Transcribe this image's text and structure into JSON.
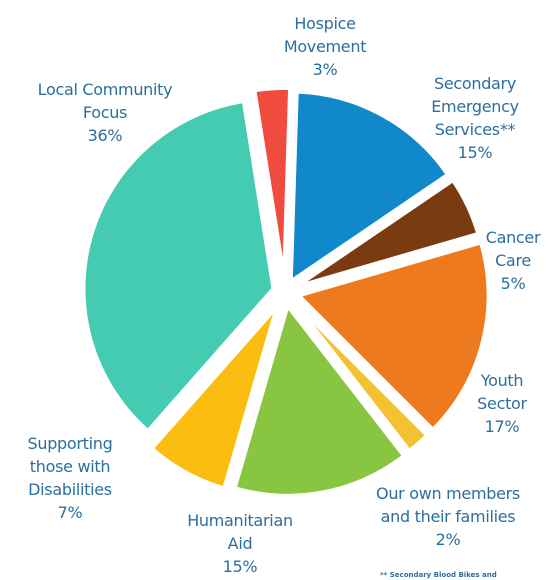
{
  "chart_data": {
    "type": "pie",
    "title": "",
    "slices": [
      {
        "label": [
          "Hospice",
          "Movement"
        ],
        "value": 3,
        "pct": "3%",
        "color": "#ef4b3f"
      },
      {
        "label": [
          "Secondary",
          "Emergency",
          "Services**"
        ],
        "value": 15,
        "pct": "15%",
        "color": "#1188c9"
      },
      {
        "label": [
          "Cancer",
          "Care"
        ],
        "value": 5,
        "pct": "5%",
        "color": "#7a3b10"
      },
      {
        "label": [
          "Youth",
          "Sector"
        ],
        "value": 17,
        "pct": "17%",
        "color": "#ee7a1f"
      },
      {
        "label": [
          "Our own members",
          "and their families"
        ],
        "value": 2,
        "pct": "2%",
        "color": "#f2c230"
      },
      {
        "label": [
          "Humanitarian",
          "Aid"
        ],
        "value": 15,
        "pct": "15%",
        "color": "#88c541"
      },
      {
        "label": [
          "Supporting",
          "those with",
          "Disabilities"
        ],
        "value": 7,
        "pct": "7%",
        "color": "#fbbd0f"
      },
      {
        "label": [
          "Local Community",
          "Focus"
        ],
        "value": 36,
        "pct": "36%",
        "color": "#45cbb2"
      }
    ],
    "footnote": "** Secondary Blood Bikes and"
  }
}
